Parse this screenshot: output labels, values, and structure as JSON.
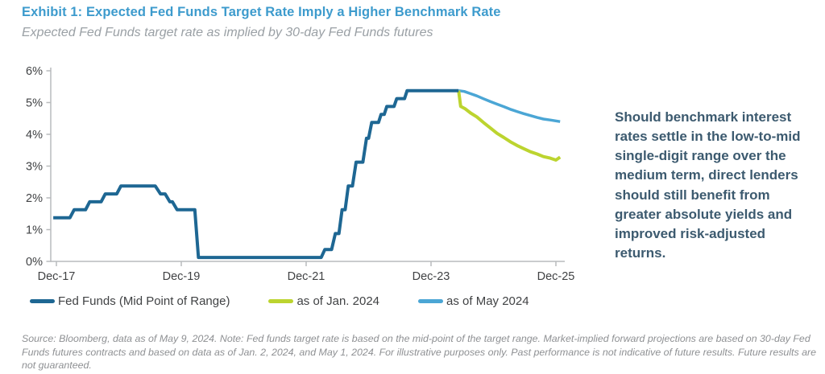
{
  "header": {
    "title": "Exhibit 1: Expected Fed Funds Target Rate Imply a Higher Benchmark Rate",
    "subtitle": "Expected Fed Funds target rate as implied by 30-day Fed Funds futures",
    "title_color": "#3D9BCD",
    "subtitle_color": "#9AA0A5"
  },
  "callout": {
    "text": "Should benchmark interest rates settle in the low-to-mid single-digit range over the medium term, direct lenders should still benefit from greater absolute yields and improved risk-adjusted returns.",
    "color": "#3C5A6F"
  },
  "footer": {
    "source_note": "Source: Bloomberg, data as of May 9, 2024. Note: Fed funds target rate is based on the mid-point of the target range. Market-implied forward projections are based on 30-day Fed Funds futures contracts and based on data as of Jan. 2, 2024, and May 1, 2024. For illustrative purposes only. Past performance is not indicative of future results. Future results are not guaranteed."
  },
  "chart_data": {
    "type": "line",
    "title": "",
    "xlabel": "",
    "ylabel": "",
    "x_unit": "months since Dec-2017",
    "xlim": [
      -1,
      97
    ],
    "ylim": [
      0,
      6
    ],
    "grid": false,
    "legend_position": "bottom",
    "axis_color": "#B9BBBD",
    "tick_label_color": "#404244",
    "x_ticks": [
      {
        "m": 0,
        "label": "Dec-17"
      },
      {
        "m": 24,
        "label": "Dec-19"
      },
      {
        "m": 48,
        "label": "Dec-21"
      },
      {
        "m": 72,
        "label": "Dec-23"
      },
      {
        "m": 96,
        "label": "Dec-25"
      }
    ],
    "y_ticks": [
      {
        "v": 0,
        "label": "0%"
      },
      {
        "v": 1,
        "label": "1%"
      },
      {
        "v": 2,
        "label": "2%"
      },
      {
        "v": 3,
        "label": "3%"
      },
      {
        "v": 4,
        "label": "4%"
      },
      {
        "v": 5,
        "label": "5%"
      },
      {
        "v": 6,
        "label": "6%"
      }
    ],
    "series": [
      {
        "name": "Fed Funds (Mid Point of Range)",
        "color": "#1E6793",
        "width": 4,
        "points": [
          [
            -0.6,
            1.375
          ],
          [
            2.6,
            1.375
          ],
          [
            3.4,
            1.625
          ],
          [
            5.6,
            1.625
          ],
          [
            6.4,
            1.875
          ],
          [
            8.6,
            1.875
          ],
          [
            9.4,
            2.125
          ],
          [
            11.6,
            2.125
          ],
          [
            12.4,
            2.375
          ],
          [
            19,
            2.375
          ],
          [
            20,
            2.125
          ],
          [
            20.9,
            2.125
          ],
          [
            21.8,
            1.875
          ],
          [
            22.3,
            1.875
          ],
          [
            23.2,
            1.625
          ],
          [
            26.6,
            1.625
          ],
          [
            27.3,
            0.125
          ],
          [
            50.9,
            0.125
          ],
          [
            51.6,
            0.375
          ],
          [
            52.9,
            0.375
          ],
          [
            53.6,
            0.875
          ],
          [
            54.3,
            0.875
          ],
          [
            54.9,
            1.625
          ],
          [
            55.5,
            1.625
          ],
          [
            56.1,
            2.375
          ],
          [
            56.9,
            2.375
          ],
          [
            57.6,
            3.125
          ],
          [
            58.9,
            3.125
          ],
          [
            59.6,
            3.875
          ],
          [
            60.0,
            3.875
          ],
          [
            60.6,
            4.375
          ],
          [
            61.9,
            4.375
          ],
          [
            62.4,
            4.625
          ],
          [
            63.0,
            4.625
          ],
          [
            63.5,
            4.875
          ],
          [
            64.9,
            4.875
          ],
          [
            65.4,
            5.125
          ],
          [
            66.9,
            5.125
          ],
          [
            67.4,
            5.375
          ],
          [
            77.3,
            5.375
          ]
        ]
      },
      {
        "name": "as of Jan. 2024",
        "color": "#BCD42F",
        "width": 4,
        "points": [
          [
            77.3,
            5.375
          ],
          [
            77.7,
            4.88
          ],
          [
            78.6,
            4.8
          ],
          [
            79.6,
            4.67
          ],
          [
            80.8,
            4.55
          ],
          [
            82.1,
            4.37
          ],
          [
            83.4,
            4.2
          ],
          [
            84.7,
            4.03
          ],
          [
            86.0,
            3.9
          ],
          [
            87.2,
            3.77
          ],
          [
            88.5,
            3.65
          ],
          [
            89.8,
            3.55
          ],
          [
            91.1,
            3.45
          ],
          [
            92.4,
            3.38
          ],
          [
            93.6,
            3.3
          ],
          [
            94.9,
            3.25
          ],
          [
            96.0,
            3.19
          ],
          [
            96.8,
            3.28
          ]
        ]
      },
      {
        "name": "as of May 2024",
        "color": "#4BA6D5",
        "width": 3.5,
        "points": [
          [
            77.3,
            5.375
          ],
          [
            78.4,
            5.35
          ],
          [
            79.4,
            5.29
          ],
          [
            80.8,
            5.21
          ],
          [
            82.1,
            5.12
          ],
          [
            83.4,
            5.03
          ],
          [
            84.7,
            4.95
          ],
          [
            86.0,
            4.87
          ],
          [
            87.2,
            4.79
          ],
          [
            88.5,
            4.72
          ],
          [
            89.8,
            4.65
          ],
          [
            91.1,
            4.59
          ],
          [
            92.4,
            4.53
          ],
          [
            93.6,
            4.48
          ],
          [
            94.9,
            4.45
          ],
          [
            96.8,
            4.4
          ]
        ]
      }
    ]
  }
}
